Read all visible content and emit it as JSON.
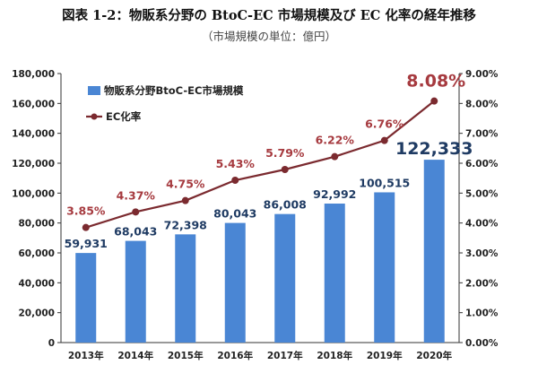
{
  "header": {
    "title": "図表 1-2：物販系分野の BtoC-EC 市場規模及び EC 化率の経年推移",
    "subtitle": "（市場規模の単位：億円）"
  },
  "chart_data": {
    "type": "bar",
    "categories": [
      "2013年",
      "2014年",
      "2015年",
      "2016年",
      "2017年",
      "2018年",
      "2019年",
      "2020年"
    ],
    "series": [
      {
        "name": "物販系分野BtoC-EC市場規模",
        "type": "bar",
        "axis": "left",
        "values": [
          59931,
          68043,
          72398,
          80043,
          86008,
          92992,
          100515,
          122333
        ],
        "labels": [
          "59,931",
          "68,043",
          "72,398",
          "80,043",
          "86,008",
          "92,992",
          "100,515",
          "122,333"
        ],
        "color": "#4a86d4"
      },
      {
        "name": "EC化率",
        "type": "line",
        "axis": "right",
        "values": [
          3.85,
          4.37,
          4.75,
          5.43,
          5.79,
          6.22,
          6.76,
          8.08
        ],
        "labels": [
          "3.85%",
          "4.37%",
          "4.75%",
          "5.43%",
          "5.79%",
          "6.22%",
          "6.76%",
          "8.08%"
        ],
        "color": "#7b2a2f"
      }
    ],
    "y_left": {
      "range": [
        0,
        180000
      ],
      "ticks": [
        "0",
        "20,000",
        "40,000",
        "60,000",
        "80,000",
        "100,000",
        "120,000",
        "140,000",
        "160,000",
        "180,000"
      ]
    },
    "y_right": {
      "range": [
        0,
        9
      ],
      "ticks": [
        "0.00%",
        "1.00%",
        "2.00%",
        "3.00%",
        "4.00%",
        "5.00%",
        "6.00%",
        "7.00%",
        "8.00%",
        "9.00%"
      ]
    },
    "legend_position": "top-left",
    "grid": false,
    "bar_label_color": "#1f3b63",
    "rate_label_color": "#a63a3f",
    "highlight_last": true
  }
}
